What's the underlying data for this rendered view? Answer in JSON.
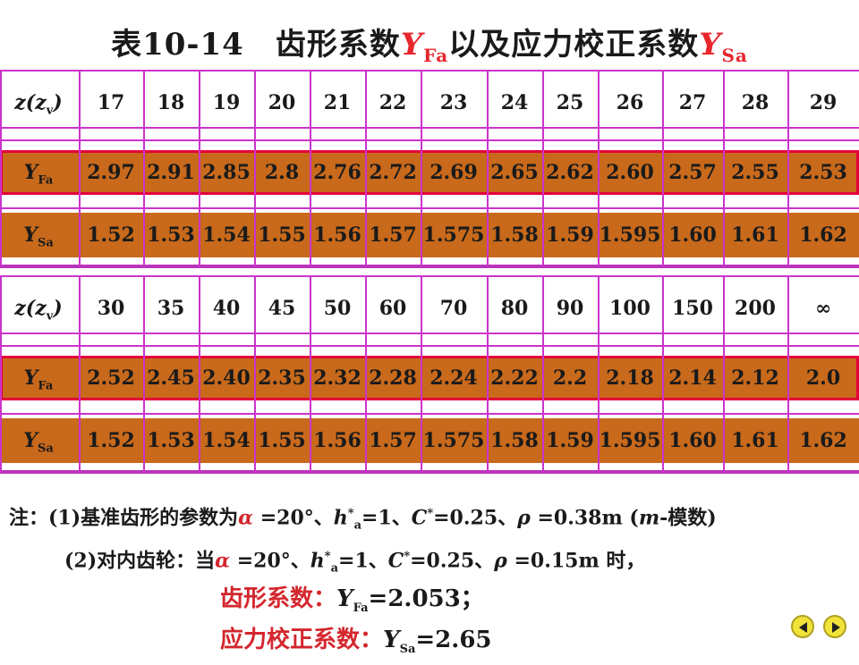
{
  "title": {
    "prefix": "表10-14　齿形系数",
    "sym1": "Y",
    "sub1": "Fa",
    "mid": "以及应力校正系数",
    "sym2": "Y",
    "sub2": "Sa"
  },
  "table1": {
    "z_label": "z(z",
    "z_sub": "v",
    "z_close": ")",
    "z_values": [
      "17",
      "18",
      "19",
      "20",
      "21",
      "22",
      "23",
      "24",
      "25",
      "26",
      "27",
      "28",
      "29"
    ],
    "yfa_values": [
      "2.97",
      "2.91",
      "2.85",
      "2.8",
      "2.76",
      "2.72",
      "2.69",
      "2.65",
      "2.62",
      "2.60",
      "2.57",
      "2.55",
      "2.53"
    ],
    "ysa_values": [
      "1.52",
      "1.53",
      "1.54",
      "1.55",
      "1.56",
      "1.57",
      "1.575",
      "1.58",
      "1.59",
      "1.595",
      "1.60",
      "1.61",
      "1.62"
    ]
  },
  "table2": {
    "z_values": [
      "30",
      "35",
      "40",
      "45",
      "50",
      "60",
      "70",
      "80",
      "90",
      "100",
      "150",
      "200",
      "∞"
    ],
    "yfa_values": [
      "2.52",
      "2.45",
      "2.40",
      "2.35",
      "2.32",
      "2.28",
      "2.24",
      "2.22",
      "2.2",
      "2.18",
      "2.14",
      "2.12",
      "2.0"
    ],
    "ysa_values": [
      "1.52",
      "1.53",
      "1.54",
      "1.55",
      "1.56",
      "1.57",
      "1.575",
      "1.58",
      "1.59",
      "1.595",
      "1.60",
      "1.61",
      "1.62"
    ]
  },
  "labels": {
    "Y": "Y",
    "Fa": "Fa",
    "Sa": "Sa"
  },
  "notes": {
    "n1_head": "注：(1)基准齿形的参数为",
    "alpha": "α",
    "alpha_val": " =20°、",
    "h": "h",
    "h_sup": "*",
    "h_sub": "a",
    "h_val": "=1、",
    "C": "C",
    "C_sup": "*",
    "C_val": "=0.25、",
    "rho": "ρ",
    "rho_val1": " =0.38m (",
    "m": "m",
    "m_tail": "-模数)",
    "n2_head": "(2)对内齿轮：当",
    "rho_val2": " =0.15m 时，",
    "r1_label": "齿形系数：",
    "r1_sym": "Y",
    "r1_sub": "Fa",
    "r1_val": "=2.053；",
    "r2_label": "应力校正系数：",
    "r2_sym": "Y",
    "r2_sub": "Sa",
    "r2_val": "=2.65"
  },
  "nav": {
    "prev_icon": "triangle-left-icon",
    "next_icon": "triangle-right-icon"
  },
  "colors": {
    "band": "#c8691b",
    "grid": "#cc33cc",
    "outline": "#e3003a",
    "red": "#d4262d",
    "button": "#f2e33a"
  }
}
